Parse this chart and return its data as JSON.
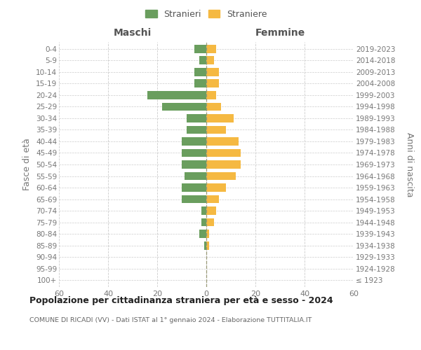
{
  "age_groups": [
    "100+",
    "95-99",
    "90-94",
    "85-89",
    "80-84",
    "75-79",
    "70-74",
    "65-69",
    "60-64",
    "55-59",
    "50-54",
    "45-49",
    "40-44",
    "35-39",
    "30-34",
    "25-29",
    "20-24",
    "15-19",
    "10-14",
    "5-9",
    "0-4"
  ],
  "birth_years": [
    "≤ 1923",
    "1924-1928",
    "1929-1933",
    "1934-1938",
    "1939-1943",
    "1944-1948",
    "1949-1953",
    "1954-1958",
    "1959-1963",
    "1964-1968",
    "1969-1973",
    "1974-1978",
    "1979-1983",
    "1984-1988",
    "1989-1993",
    "1994-1998",
    "1999-2003",
    "2004-2008",
    "2009-2013",
    "2014-2018",
    "2019-2023"
  ],
  "maschi": [
    0,
    0,
    0,
    1,
    3,
    2,
    2,
    10,
    10,
    9,
    10,
    10,
    10,
    8,
    8,
    18,
    24,
    5,
    5,
    3,
    5
  ],
  "femmine": [
    0,
    0,
    0,
    1,
    1,
    3,
    4,
    5,
    8,
    12,
    14,
    14,
    13,
    8,
    11,
    6,
    4,
    5,
    5,
    3,
    4
  ],
  "color_maschi": "#6a9e5e",
  "color_femmine": "#f5b942",
  "title_main": "Popolazione per cittadinanza straniera per età e sesso - 2024",
  "title_sub": "COMUNE DI RICADI (VV) - Dati ISTAT al 1° gennaio 2024 - Elaborazione TUTTITALIA.IT",
  "ylabel_left": "Fasce di età",
  "ylabel_right": "Anni di nascita",
  "legend_maschi": "Stranieri",
  "legend_femmine": "Straniere",
  "header_left": "Maschi",
  "header_right": "Femmine",
  "xlim": 60,
  "background_color": "#ffffff",
  "grid_color": "#cccccc"
}
